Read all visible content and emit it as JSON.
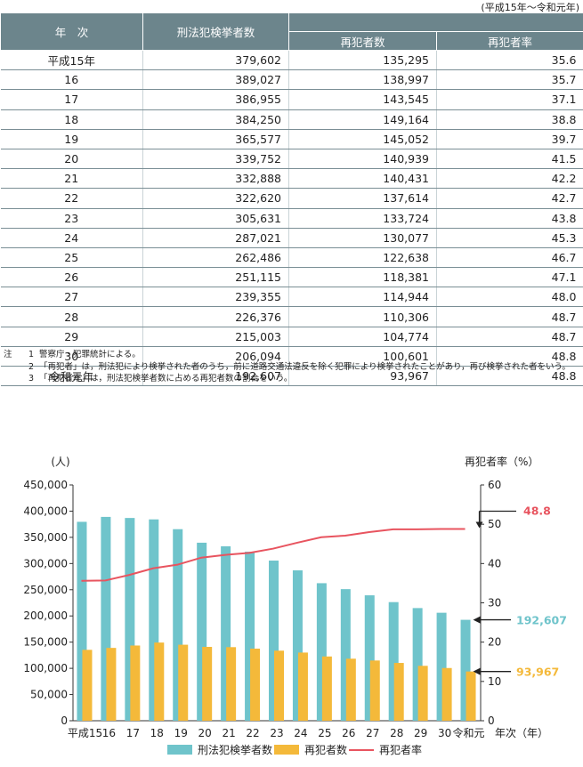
{
  "period_note": "(平成15年〜令和元年)",
  "table": {
    "header_year": "年　次",
    "header_arrests": "刑法犯検挙者数",
    "header_repeat": "再犯者数",
    "header_rate": "再犯者率",
    "rows": [
      [
        "平成15年",
        "379,602",
        "135,295",
        "35.6"
      ],
      [
        "16",
        "389,027",
        "138,997",
        "35.7"
      ],
      [
        "17",
        "386,955",
        "143,545",
        "37.1"
      ],
      [
        "18",
        "384,250",
        "149,164",
        "38.8"
      ],
      [
        "19",
        "365,577",
        "145,052",
        "39.7"
      ],
      [
        "20",
        "339,752",
        "140,939",
        "41.5"
      ],
      [
        "21",
        "332,888",
        "140,431",
        "42.2"
      ],
      [
        "22",
        "322,620",
        "137,614",
        "42.7"
      ],
      [
        "23",
        "305,631",
        "133,724",
        "43.8"
      ],
      [
        "24",
        "287,021",
        "130,077",
        "45.3"
      ],
      [
        "25",
        "262,486",
        "122,638",
        "46.7"
      ],
      [
        "26",
        "251,115",
        "118,381",
        "47.1"
      ],
      [
        "27",
        "239,355",
        "114,944",
        "48.0"
      ],
      [
        "28",
        "226,376",
        "110,306",
        "48.7"
      ],
      [
        "29",
        "215,003",
        "104,774",
        "48.7"
      ],
      [
        "30",
        "206,094",
        "100,601",
        "48.8"
      ],
      [
        "令和元年",
        "192,607",
        "93,967",
        "48.8"
      ]
    ]
  },
  "notes": {
    "label": "注",
    "items": [
      {
        "num": "1",
        "text": "警察庁・犯罪統計による。"
      },
      {
        "num": "2",
        "text": "「再犯者」は，刑法犯により検挙された者のうち，前に道路交通法違反を除く犯罪により検挙されたことがあり，再び検挙された者をいう。"
      },
      {
        "num": "3",
        "text": "「再犯者率」は，刑法犯検挙者数に占める再犯者数の割合をいう。"
      }
    ]
  },
  "chart_data": {
    "type": "bar",
    "categories": [
      "平成15",
      "16",
      "17",
      "18",
      "19",
      "20",
      "21",
      "22",
      "23",
      "24",
      "25",
      "26",
      "27",
      "28",
      "29",
      "30",
      "令和元"
    ],
    "series": [
      {
        "name": "刑法犯検挙者数",
        "type": "bar",
        "axis": "left",
        "color": "#6fc4cb",
        "values": [
          379602,
          389027,
          386955,
          384250,
          365577,
          339752,
          332888,
          322620,
          305631,
          287021,
          262486,
          251115,
          239355,
          226376,
          215003,
          206094,
          192607
        ]
      },
      {
        "name": "再犯者数",
        "type": "bar",
        "axis": "left",
        "color": "#f4b93a",
        "values": [
          135295,
          138997,
          143545,
          149164,
          145052,
          140939,
          140431,
          137614,
          133724,
          130077,
          122638,
          118381,
          114944,
          110306,
          104774,
          100601,
          93967
        ]
      },
      {
        "name": "再犯者率",
        "type": "line",
        "axis": "right",
        "color": "#e8545f",
        "values": [
          35.6,
          35.7,
          37.1,
          38.8,
          39.7,
          41.5,
          42.2,
          42.7,
          43.8,
          45.3,
          46.7,
          47.1,
          48.0,
          48.7,
          48.7,
          48.8,
          48.8
        ]
      }
    ],
    "ylabel_left": "(人)",
    "ylabel_right": "再犯者率（%）",
    "xlabel": "年次（年）",
    "ylim_left": [
      0,
      450000
    ],
    "yticks_left": [
      "0",
      "50,000",
      "100,000",
      "150,000",
      "200,000",
      "250,000",
      "300,000",
      "350,000",
      "400,000",
      "450,000"
    ],
    "ylim_right": [
      0,
      60
    ],
    "yticks_right": [
      "0",
      "10",
      "20",
      "30",
      "40",
      "50",
      "60"
    ],
    "annotations": [
      {
        "series": "再犯者率",
        "label": "48.8",
        "color": "#e8545f"
      },
      {
        "series": "刑法犯検挙者数",
        "label": "192,607",
        "color": "#6fc4cb"
      },
      {
        "series": "再犯者数",
        "label": "93,967",
        "color": "#f4b93a"
      }
    ],
    "legend_position": "bottom",
    "grid": false
  }
}
